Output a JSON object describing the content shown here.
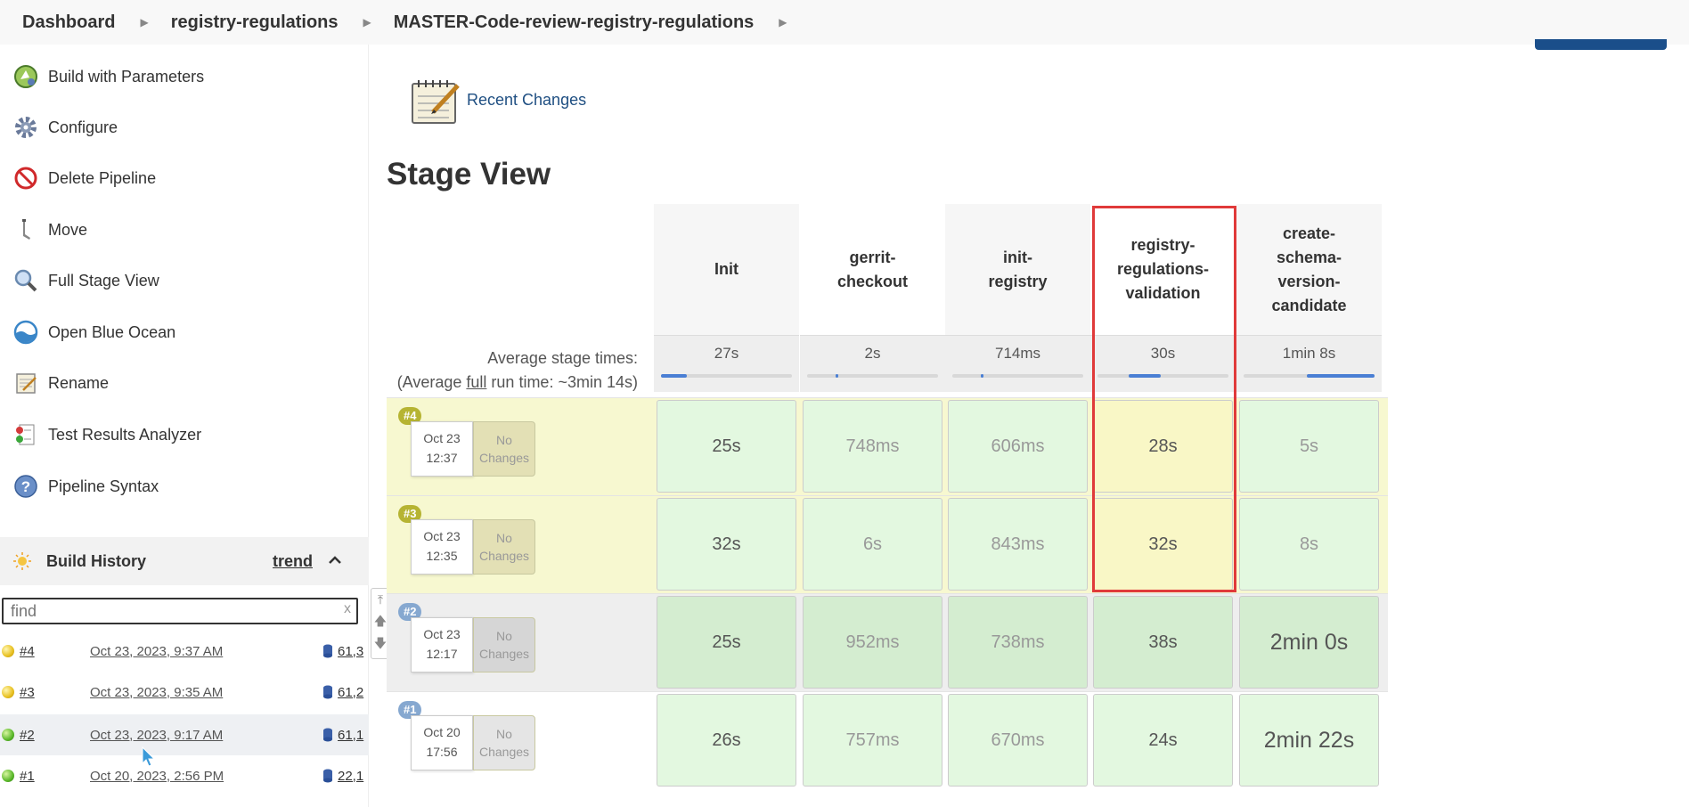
{
  "breadcrumb": [
    "Dashboard",
    "registry-regulations",
    "MASTER-Code-review-registry-regulations"
  ],
  "sidebar": {
    "tasks": [
      {
        "label": "Build with Parameters",
        "icon": "build-with-parameters-icon"
      },
      {
        "label": "Configure",
        "icon": "gear-icon"
      },
      {
        "label": "Delete Pipeline",
        "icon": "no-entry-icon"
      },
      {
        "label": "Move",
        "icon": "move-icon"
      },
      {
        "label": "Full Stage View",
        "icon": "magnifier-icon"
      },
      {
        "label": "Open Blue Ocean",
        "icon": "blue-ocean-icon"
      },
      {
        "label": "Rename",
        "icon": "notepad-icon"
      },
      {
        "label": "Test Results Analyzer",
        "icon": "test-results-icon"
      },
      {
        "label": "Pipeline Syntax",
        "icon": "help-icon"
      }
    ],
    "build_history": {
      "title": "Build History",
      "trend": "trend",
      "find_placeholder": "find",
      "find_clear": "x",
      "builds": [
        {
          "num": "#4",
          "date": "Oct 23, 2023, 9:37 AM",
          "version": "61,3",
          "status": "yellow"
        },
        {
          "num": "#3",
          "date": "Oct 23, 2023, 9:35 AM",
          "version": "61,2",
          "status": "yellow"
        },
        {
          "num": "#2",
          "date": "Oct 23, 2023, 9:17 AM",
          "version": "61,1",
          "status": "green"
        },
        {
          "num": "#1",
          "date": "Oct 20, 2023, 2:56 PM",
          "version": "22,1",
          "status": "green"
        }
      ]
    }
  },
  "main": {
    "recent_changes": "Recent Changes",
    "stage_view_title": "Stage View",
    "avg_label_1": "Average stage times:",
    "avg_label_2a": "(Average ",
    "avg_label_2b": "full",
    "avg_label_2c": " run time: ~3min 14s)",
    "stages": [
      {
        "name": "Init",
        "avg": "27s",
        "bar_start": 0.0,
        "bar_width": 0.2
      },
      {
        "name": "gerrit-checkout",
        "avg": "2s",
        "bar_start": 0.22,
        "bar_width": 0.02
      },
      {
        "name": "init-registry",
        "avg": "714ms",
        "bar_start": 0.22,
        "bar_width": 0.02
      },
      {
        "name": "registry-regulations-validation",
        "avg": "30s",
        "bar_start": 0.24,
        "bar_width": 0.24
      },
      {
        "name": "create-schema-version-candidate",
        "avg": "1min 8s",
        "bar_start": 0.48,
        "bar_width": 0.52
      }
    ],
    "runs": [
      {
        "badge": "#4",
        "date": "Oct 23",
        "time": "12:37",
        "no_changes": "No Changes",
        "row_bg": "#f7f8d0",
        "badge_bg": "#b6b432",
        "card_bg": "#e3e0b5",
        "cells": [
          "25s",
          "748ms",
          "606ms",
          "28s",
          "5s"
        ],
        "cell_bgs": [
          "#e3f8e0",
          "#e3f8e0",
          "#e3f8e0",
          "#f9f7c6",
          "#e3f8e0"
        ]
      },
      {
        "badge": "#3",
        "date": "Oct 23",
        "time": "12:35",
        "no_changes": "No Changes",
        "row_bg": "#f7f8d0",
        "badge_bg": "#b6b432",
        "card_bg": "#e3e0b5",
        "cells": [
          "32s",
          "6s",
          "843ms",
          "32s",
          "8s"
        ],
        "cell_bgs": [
          "#e3f8e0",
          "#e3f8e0",
          "#e3f8e0",
          "#f9f7c6",
          "#e3f8e0"
        ]
      },
      {
        "badge": "#2",
        "date": "Oct 23",
        "time": "12:17",
        "no_changes": "No Changes",
        "row_bg": "#eeeeee",
        "badge_bg": "#86a8d0",
        "card_bg": "#d6d6d6",
        "cells": [
          "25s",
          "952ms",
          "738ms",
          "38s",
          "2min 0s"
        ],
        "cell_bgs": [
          "#d4edd0",
          "#d4edd0",
          "#d4edd0",
          "#d4edd0",
          "#d4edd0"
        ]
      },
      {
        "badge": "#1",
        "date": "Oct 20",
        "time": "17:56",
        "no_changes": "No Changes",
        "row_bg": "#ffffff",
        "badge_bg": "#86a8d0",
        "card_bg": "#e5e5e5",
        "cells": [
          "26s",
          "757ms",
          "670ms",
          "24s",
          "2min 22s"
        ],
        "cell_bgs": [
          "#e3f8e0",
          "#e3f8e0",
          "#e3f8e0",
          "#e3f8e0",
          "#e3f8e0"
        ]
      }
    ]
  }
}
